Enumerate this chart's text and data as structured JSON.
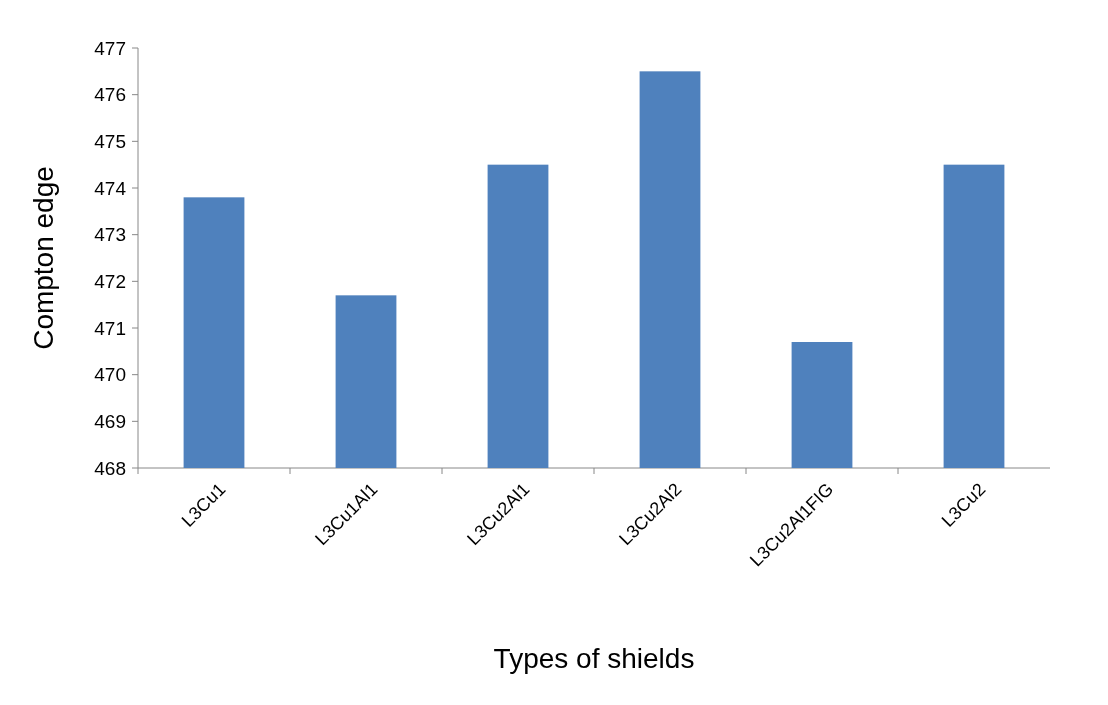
{
  "chart_data": {
    "type": "bar",
    "xlabel": "Types of shields",
    "ylabel": "Compton edge",
    "categories": [
      "L3Cu1",
      "L3Cu1Al1",
      "L3Cu2Al1",
      "L3Cu2Al2",
      "L3Cu2Al1FIG",
      "L3Cu2"
    ],
    "values": [
      473.8,
      471.7,
      474.5,
      476.5,
      470.7,
      474.5
    ],
    "color": "#4f81bd",
    "ylim": [
      468,
      477
    ],
    "yticks": [
      468,
      469,
      470,
      471,
      472,
      473,
      474,
      475,
      476,
      477
    ],
    "grid": false
  }
}
